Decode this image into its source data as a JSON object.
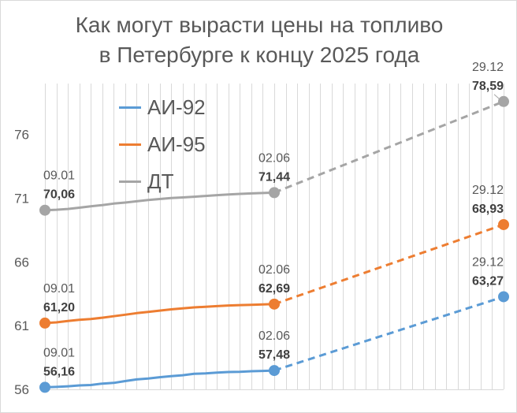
{
  "chart": {
    "title_line1": "Как могут вырасти цены на топливо",
    "title_line2": "в Петербурге к концу 2025 года"
  },
  "colors": {
    "ai92": "#5b9bd5",
    "ai95": "#ed7d31",
    "dt": "#a5a5a5",
    "grid": "#d9d9d9",
    "axis_text": "#595959",
    "date_text": "#595959",
    "value_text": "#404040"
  },
  "chart_data": {
    "type": "line",
    "title": "Как могут вырасти цены на топливо в Петербурге к концу 2025 года",
    "xlabel": "",
    "ylabel": "",
    "ylim": [
      56,
      80
    ],
    "yticks": [
      56,
      61,
      66,
      71,
      76
    ],
    "x_domain": [
      0,
      20
    ],
    "legend_position": "top-left",
    "grid": "vertical",
    "series": [
      {
        "name": "АИ-92",
        "color": "#5b9bd5",
        "actual": [
          [
            0,
            56.16
          ],
          [
            1,
            56.19
          ],
          [
            2,
            56.24
          ],
          [
            3,
            56.31
          ],
          [
            4,
            56.34
          ],
          [
            5,
            56.45
          ],
          [
            6,
            56.51
          ],
          [
            7,
            56.65
          ],
          [
            8,
            56.78
          ],
          [
            9,
            56.85
          ],
          [
            10,
            56.95
          ],
          [
            11,
            57.04
          ],
          [
            12,
            57.11
          ],
          [
            13,
            57.22
          ],
          [
            14,
            57.25
          ],
          [
            15,
            57.31
          ],
          [
            16,
            57.36
          ],
          [
            17,
            57.38
          ],
          [
            18,
            57.42
          ],
          [
            19,
            57.45
          ],
          [
            20,
            57.48
          ]
        ],
        "forecast": [
          [
            20,
            57.48
          ],
          [
            40,
            63.27
          ]
        ],
        "point_labels": [
          {
            "x": 0,
            "date": "09.01",
            "value": "56,16"
          },
          {
            "x": 20,
            "date": "02.06",
            "value": "57,48"
          },
          {
            "x": 40,
            "date": "29.12",
            "value": "63,27"
          }
        ]
      },
      {
        "name": "АИ-95",
        "color": "#ed7d31",
        "actual": [
          [
            0,
            61.2
          ],
          [
            1,
            61.26
          ],
          [
            2,
            61.36
          ],
          [
            3,
            61.46
          ],
          [
            4,
            61.52
          ],
          [
            5,
            61.62
          ],
          [
            6,
            61.74
          ],
          [
            7,
            61.86
          ],
          [
            8,
            61.98
          ],
          [
            9,
            62.08
          ],
          [
            10,
            62.18
          ],
          [
            11,
            62.28
          ],
          [
            12,
            62.36
          ],
          [
            13,
            62.43
          ],
          [
            14,
            62.48
          ],
          [
            15,
            62.53
          ],
          [
            16,
            62.58
          ],
          [
            17,
            62.61
          ],
          [
            18,
            62.64
          ],
          [
            19,
            62.67
          ],
          [
            20,
            62.69
          ]
        ],
        "forecast": [
          [
            20,
            62.69
          ],
          [
            40,
            68.93
          ]
        ],
        "point_labels": [
          {
            "x": 0,
            "date": "09.01",
            "value": "61,20"
          },
          {
            "x": 20,
            "date": "02.06",
            "value": "62,69"
          },
          {
            "x": 40,
            "date": "29.12",
            "value": "68,93"
          }
        ]
      },
      {
        "name": "ДТ",
        "color": "#a5a5a5",
        "actual": [
          [
            0,
            70.06
          ],
          [
            1,
            70.1
          ],
          [
            2,
            70.16
          ],
          [
            3,
            70.26
          ],
          [
            4,
            70.36
          ],
          [
            5,
            70.46
          ],
          [
            6,
            70.58
          ],
          [
            7,
            70.66
          ],
          [
            8,
            70.76
          ],
          [
            9,
            70.86
          ],
          [
            10,
            70.94
          ],
          [
            11,
            71.02
          ],
          [
            12,
            71.06
          ],
          [
            13,
            71.12
          ],
          [
            14,
            71.18
          ],
          [
            15,
            71.24
          ],
          [
            16,
            71.3
          ],
          [
            17,
            71.34
          ],
          [
            18,
            71.38
          ],
          [
            19,
            71.41
          ],
          [
            20,
            71.44
          ]
        ],
        "forecast": [
          [
            20,
            71.44
          ],
          [
            40,
            78.59
          ]
        ],
        "point_labels": [
          {
            "x": 0,
            "date": "09.01",
            "value": "70,06"
          },
          {
            "x": 20,
            "date": "02.06",
            "value": "71,44"
          },
          {
            "x": 40,
            "date": "29.12",
            "value": "78,59"
          }
        ]
      }
    ]
  }
}
